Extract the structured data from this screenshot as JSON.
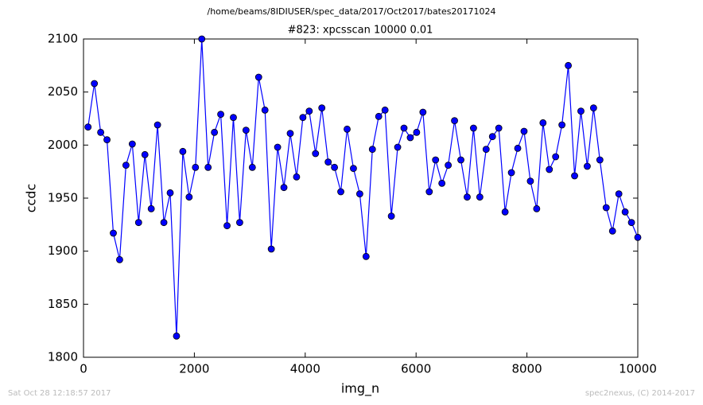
{
  "chart_data": {
    "type": "line",
    "title": "/home/beams/8IDIUSER/spec_data/2017/Oct2017/bates20171024",
    "subtitle": "#823: xpcsscan 10000 0.01",
    "x_label": "img_n",
    "y_label": "ccdc",
    "footer_left": "Sat Oct 28 12:18:57 2017",
    "footer_right": "spec2nexus, (C) 2014-2017",
    "x": [
      82,
      196,
      310,
      424,
      538,
      652,
      766,
      880,
      994,
      1108,
      1222,
      1336,
      1450,
      1564,
      1678,
      1792,
      1906,
      2020,
      2134,
      2248,
      2362,
      2476,
      2590,
      2704,
      2818,
      2932,
      3046,
      3160,
      3274,
      3388,
      3502,
      3616,
      3730,
      3844,
      3958,
      4072,
      4186,
      4300,
      4414,
      4528,
      4642,
      4756,
      4870,
      4984,
      5098,
      5212,
      5326,
      5440,
      5554,
      5668,
      5782,
      5896,
      6010,
      6124,
      6238,
      6352,
      6466,
      6580,
      6694,
      6808,
      6922,
      7036,
      7150,
      7264,
      7378,
      7492,
      7606,
      7720,
      7834,
      7948,
      8062,
      8176,
      8290,
      8404,
      8518,
      8632,
      8746,
      8860,
      8974,
      9088,
      9202,
      9316,
      9430,
      9544,
      9658,
      9772,
      9886,
      10000
    ],
    "series": [
      {
        "name": "ccdc",
        "color": "#0000ff",
        "marker_edge": "#000000",
        "values": [
          2017,
          2058,
          2012,
          2005,
          1917,
          1892,
          1981,
          2001,
          1927,
          1991,
          1940,
          2019,
          1927,
          1955,
          1820,
          1994,
          1951,
          1979,
          2100,
          1979,
          2012,
          2029,
          1924,
          2026,
          1927,
          2014,
          1979,
          2064,
          2033,
          1902,
          1998,
          1960,
          2011,
          1970,
          2026,
          2032,
          1992,
          2035,
          1984,
          1979,
          1956,
          2015,
          1978,
          1954,
          1895,
          1996,
          2027,
          2033,
          1933,
          1998,
          2016,
          2007,
          2012,
          2031,
          1956,
          1986,
          1964,
          1981,
          2023,
          1986,
          1951,
          2016,
          1951,
          1996,
          2008,
          2016,
          1937,
          1974,
          1997,
          2013,
          1966,
          1940,
          2021,
          1977,
          1989,
          2019,
          2075,
          1971,
          2032,
          1980,
          2035,
          1986,
          1941,
          1919,
          1954,
          1937,
          1927,
          1913
        ]
      }
    ],
    "xlim": [
      0,
      10000
    ],
    "xticks": [
      0,
      2000,
      4000,
      6000,
      8000,
      10000
    ],
    "ylim": [
      1800,
      2100
    ],
    "yticks": [
      1800,
      1850,
      1900,
      1950,
      2000,
      2050,
      2100
    ]
  }
}
